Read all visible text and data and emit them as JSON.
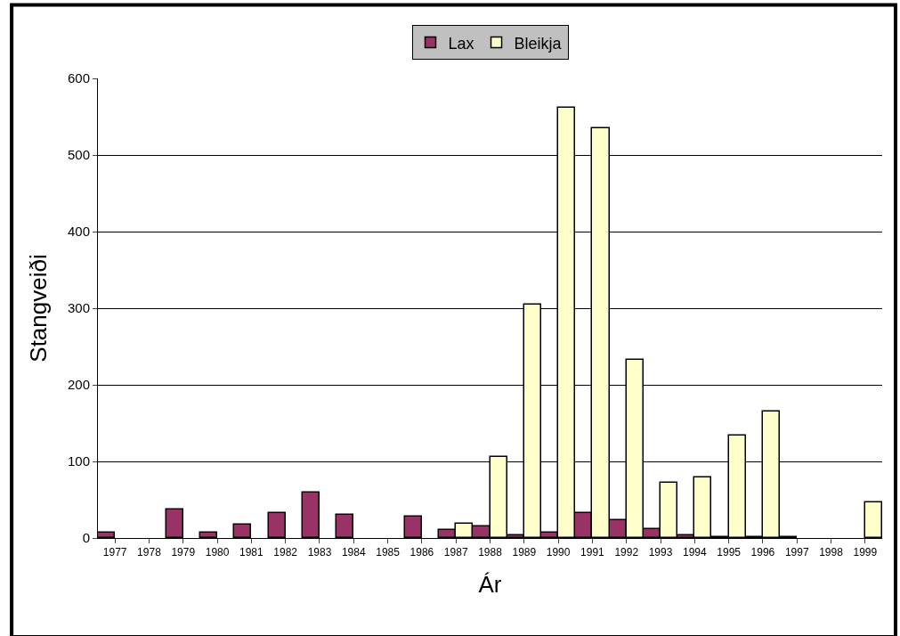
{
  "chart_data": {
    "type": "bar",
    "xlabel": "Ár",
    "ylabel": "Stangveiði",
    "categories": [
      "1977",
      "1978",
      "1979",
      "1980",
      "1981",
      "1982",
      "1983",
      "1984",
      "1985",
      "1986",
      "1987",
      "1988",
      "1989",
      "1990",
      "1991",
      "1992",
      "1993",
      "1994",
      "1995",
      "1996",
      "1997",
      "1998",
      "1999"
    ],
    "series": [
      {
        "name": "Lax",
        "color": "#993366",
        "values": [
          7,
          null,
          37,
          7,
          17,
          32,
          59,
          30,
          null,
          28,
          11,
          15,
          3,
          7,
          32,
          23,
          12,
          3,
          1,
          1,
          1,
          null,
          null
        ]
      },
      {
        "name": "Bleikja",
        "color": "#ffffcc",
        "values": [
          null,
          null,
          null,
          null,
          null,
          null,
          null,
          null,
          null,
          null,
          19,
          106,
          305,
          562,
          535,
          232,
          72,
          79,
          134,
          165,
          null,
          null,
          46
        ]
      }
    ],
    "ylim": [
      0,
      600
    ],
    "yticks": [
      0,
      100,
      200,
      300,
      400,
      500,
      600
    ],
    "grid": "y",
    "legend": "top"
  }
}
